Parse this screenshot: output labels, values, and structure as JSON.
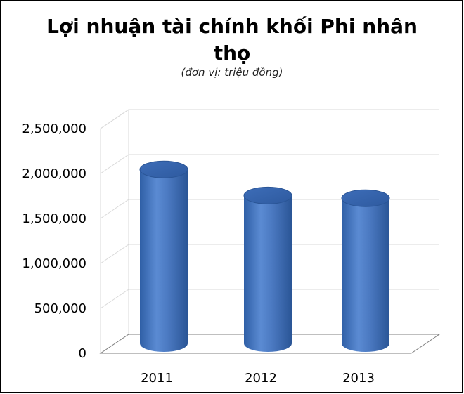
{
  "chart_data": {
    "type": "bar",
    "title_line1": "Lợi nhuận tài chính khối Phi nhân",
    "title_line2": "thọ",
    "subtitle": "(đơn vị: triệu đồng)",
    "categories": [
      "2011",
      "2012",
      "2013"
    ],
    "values": [
      1920000,
      1630000,
      1600000
    ],
    "y_ticks": [
      "0",
      "500,000",
      "1,000,000",
      "1,500,000",
      "2,000,000",
      "2,500,000"
    ],
    "ylim": [
      0,
      2500000
    ],
    "grid": true,
    "legend": "none",
    "style": "3d-cylinder",
    "bar_color": "#4a78c0"
  }
}
